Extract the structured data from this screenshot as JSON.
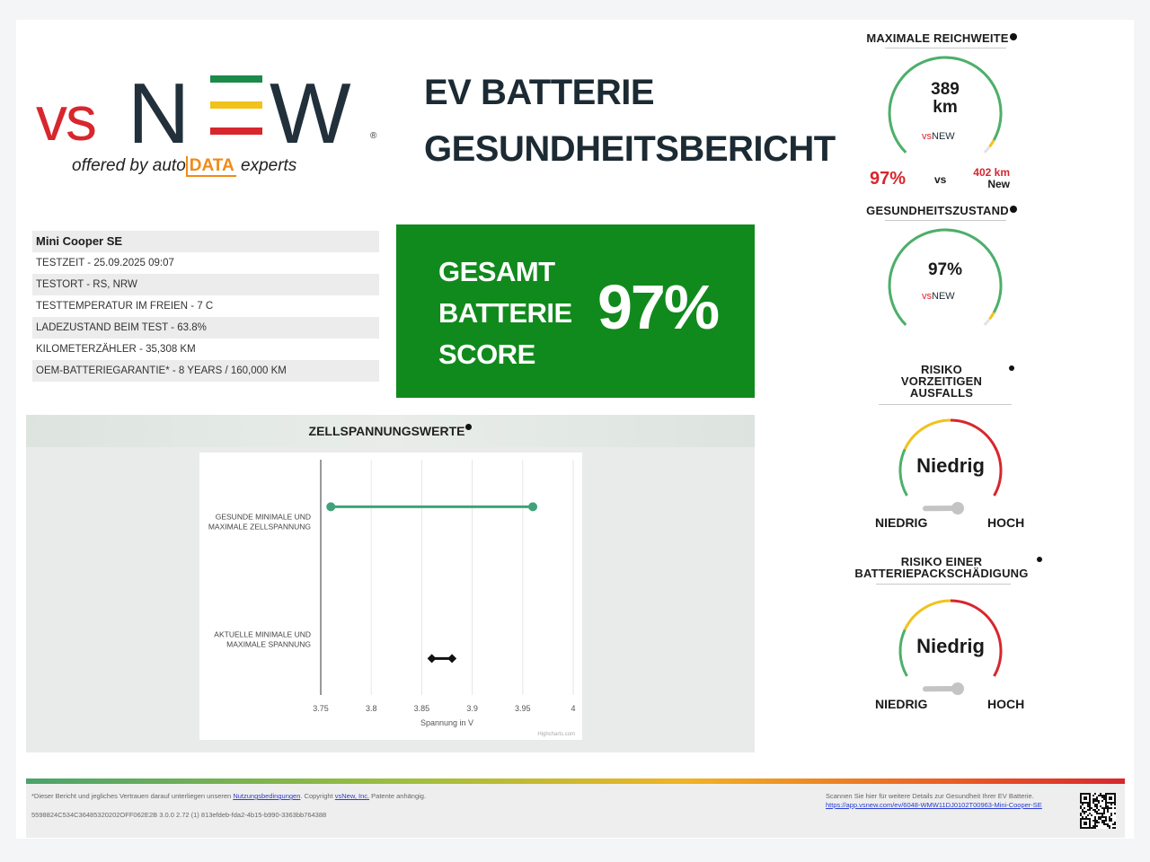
{
  "logo": {
    "vs": "vs",
    "new_n": "N",
    "new_w": "W",
    "reg_mark": "®",
    "offered_prefix": "offered by auto",
    "offered_brand": "DATA",
    "offered_suffix": "experts"
  },
  "title": {
    "line1": "EV BATTERIE",
    "line2": "GESUNDHEITSBERICHT"
  },
  "info": {
    "vehicle": "Mini Cooper SE",
    "rows": [
      {
        "label": "TESTZEIT - ",
        "value": "25.09.2025 09:07"
      },
      {
        "label": "TESTORT - ",
        "value": "RS, NRW"
      },
      {
        "label": "TESTTEMPERATUR IM FREIEN - ",
        "value": "7 C"
      },
      {
        "label": "LADEZUSTAND BEIM TEST - ",
        "value": "63.8%"
      },
      {
        "label": "KILOMETERZÄHLER - ",
        "value": "35,308 KM"
      },
      {
        "label": "OEM-BATTERIEGARANTIE* - ",
        "value": "8 YEARS / 160,000 KM"
      }
    ]
  },
  "score": {
    "line1": "GESAMT",
    "line2": "BATTERIE",
    "line3": "SCORE",
    "value": "97%",
    "color": "#108a1c"
  },
  "chart_panel": {
    "title": "ZELLSPANNUNGSWERTE",
    "credit": "Highcharts.com"
  },
  "chart_data": {
    "type": "bar",
    "orientation": "horizontal-range",
    "categories": [
      "GESUNDE MINIMALE UND MAXIMALE ZELLSPANNUNG",
      "AKTUELLE MINIMALE UND MAXIMALE SPANNUNG"
    ],
    "category_lines": [
      [
        "GESUNDE MINIMALE UND",
        "MAXIMALE ZELLSPANNUNG"
      ],
      [
        "AKTUELLE MINIMALE UND",
        "MAXIMALE SPANNUNG"
      ]
    ],
    "series": [
      {
        "low": 3.76,
        "high": 3.96,
        "color": "#3fa37a"
      },
      {
        "low": 3.86,
        "high": 3.88,
        "color": "#111111"
      }
    ],
    "xlabel": "Spannung in V",
    "xlim": [
      3.75,
      4.0
    ],
    "ticks": [
      "3.75",
      "3.8",
      "3.85",
      "3.9",
      "3.95",
      "4"
    ],
    "tick_values": [
      3.75,
      3.8,
      3.85,
      3.9,
      3.95,
      4.0
    ],
    "grid": true
  },
  "range_gauge": {
    "title": "MAXIMALE REICHWEITE",
    "value_line1": "389",
    "value_line2": "km",
    "percent": "97%",
    "vs": "vs",
    "new_value": "402 km",
    "new_label": "New",
    "fill_fraction": 0.97
  },
  "health_gauge": {
    "title": "GESUNDHEITSZUSTAND",
    "value": "97%",
    "fill_fraction": 0.97
  },
  "risk_failure": {
    "title_line1": "RISIKO",
    "title_line2": "VORZEITIGEN",
    "title_line3": "AUSFALLS",
    "value": "Niedrig",
    "low_label": "NIEDRIG",
    "high_label": "HOCH",
    "level_fraction": 0.12
  },
  "risk_pack": {
    "title_line1": "RISIKO EINER",
    "title_line2": "BATTERIEPACKSCHÄDIGUNG",
    "value": "Niedrig",
    "low_label": "NIEDRIG",
    "high_label": "HOCH",
    "level_fraction": 0.12
  },
  "footer": {
    "disclaimer_prefix": "*Dieser Bericht und jegliches Vertrauen darauf unterliegen unseren ",
    "terms_link": "Nutzungsbedingungen",
    "copyright_prefix": ". Copyright ",
    "company_link": "vsNew, Inc.",
    "patent": " Patente anhängig.",
    "id_line": "5598824C534C36485320202OFF062E2B 3.0.0 2.72 (1) 813efdeb-fda2-4b15-b990-3363bb764388",
    "scan_text": "Scannen Sie hier für weitere Details zur Gesundheit Ihrer EV Batterie.",
    "scan_url": "https://app.vsnew.com/ev/6048-WMW11DJ0102T00963-Mini-Cooper-SE"
  },
  "colors": {
    "green_gauge": "#4caf6a",
    "yellow": "#f1c21b",
    "red": "#d8262d",
    "dark": "#21303a"
  }
}
